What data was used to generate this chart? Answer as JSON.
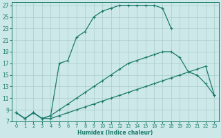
{
  "xlabel": "Humidex (Indice chaleur)",
  "bg_color": "#cce8e8",
  "line_color": "#1a7a6a",
  "grid_color": "#aacccc",
  "xlim": [
    -0.5,
    23.5
  ],
  "ylim": [
    7,
    27.5
  ],
  "yticks": [
    7,
    9,
    11,
    13,
    15,
    17,
    19,
    21,
    23,
    25,
    27
  ],
  "xticks": [
    0,
    1,
    2,
    3,
    4,
    5,
    6,
    7,
    8,
    9,
    10,
    11,
    12,
    13,
    14,
    15,
    16,
    17,
    18,
    19,
    20,
    21,
    22,
    23
  ],
  "curve1_x": [
    0,
    1,
    2,
    3,
    4,
    5,
    6,
    7,
    8,
    9,
    10,
    11,
    12,
    13,
    14,
    15,
    16,
    17,
    18
  ],
  "curve1_y": [
    8.5,
    7.5,
    8.5,
    7.5,
    8.0,
    17.0,
    17.5,
    21.5,
    22.5,
    25.0,
    26.0,
    26.5,
    27.0,
    27.0,
    27.0,
    27.0,
    27.0,
    26.5,
    23.0
  ],
  "curve2_x": [
    0,
    1,
    2,
    3,
    4,
    5,
    6,
    7,
    8,
    9,
    10,
    11,
    12,
    13,
    14,
    15,
    16,
    17,
    18,
    19,
    20,
    21,
    22,
    23
  ],
  "curve2_y": [
    8.5,
    7.5,
    8.5,
    7.5,
    8.0,
    9.0,
    10.0,
    11.0,
    12.0,
    13.0,
    14.0,
    15.0,
    16.0,
    17.0,
    17.5,
    18.0,
    18.5,
    19.0,
    19.0,
    18.0,
    15.5,
    15.0,
    13.5,
    11.5
  ],
  "curve3_x": [
    0,
    1,
    2,
    3,
    4,
    5,
    6,
    7,
    8,
    9,
    10,
    11,
    12,
    13,
    14,
    15,
    16,
    17,
    18,
    19,
    20,
    21,
    22,
    23
  ],
  "curve3_y": [
    8.5,
    7.5,
    8.5,
    7.5,
    7.5,
    8.0,
    8.5,
    9.0,
    9.5,
    10.0,
    10.5,
    11.0,
    11.5,
    12.0,
    12.5,
    13.0,
    13.5,
    14.0,
    14.5,
    15.0,
    15.5,
    16.0,
    16.5,
    11.5
  ]
}
